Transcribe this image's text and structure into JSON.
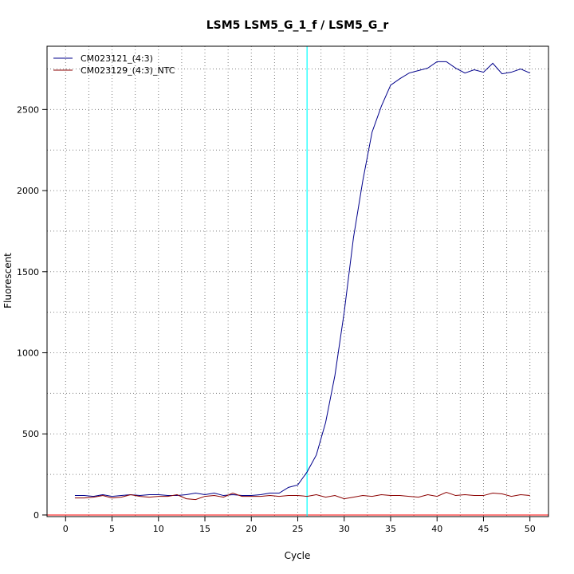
{
  "chart_data": {
    "type": "line",
    "title": "LSM5  LSM5_G_1_f / LSM5_G_r",
    "xlabel": "Cycle",
    "ylabel": "Fluorescent",
    "xlim": [
      -2,
      52
    ],
    "ylim": [
      -10,
      2890
    ],
    "xticks": [
      0,
      5,
      10,
      15,
      20,
      25,
      30,
      35,
      40,
      45,
      50
    ],
    "yticks": [
      0,
      500,
      1000,
      1500,
      2000,
      2500
    ],
    "grid": true,
    "legend_position": "top-left",
    "threshold_cycle": 26,
    "baseline": 0,
    "colors": {
      "series_1": "#00008b",
      "series_2": "#8b0000",
      "threshold": "#00ffff",
      "baseline": "#ff0000",
      "grid": "#808080"
    },
    "series": [
      {
        "name": "CM023121_(4:3)",
        "color": "#00008b",
        "x": [
          1,
          2,
          3,
          4,
          5,
          6,
          7,
          8,
          9,
          10,
          11,
          12,
          13,
          14,
          15,
          16,
          17,
          18,
          19,
          20,
          21,
          22,
          23,
          24,
          25,
          26,
          27,
          28,
          29,
          30,
          31,
          32,
          33,
          34,
          35,
          36,
          37,
          38,
          39,
          40,
          41,
          42,
          43,
          44,
          45,
          46,
          47,
          48,
          49,
          50
        ],
        "values": [
          120,
          120,
          115,
          125,
          115,
          120,
          125,
          120,
          125,
          125,
          120,
          120,
          125,
          135,
          125,
          135,
          120,
          125,
          120,
          120,
          125,
          135,
          135,
          170,
          185,
          265,
          370,
          570,
          860,
          1250,
          1710,
          2060,
          2360,
          2520,
          2650,
          2690,
          2725,
          2740,
          2755,
          2795,
          2795,
          2755,
          2725,
          2745,
          2730,
          2785,
          2720,
          2730,
          2750,
          2725
        ]
      },
      {
        "name": "CM023129_(4:3)_NTC",
        "color": "#8b0000",
        "x": [
          1,
          2,
          3,
          4,
          5,
          6,
          7,
          8,
          9,
          10,
          11,
          12,
          13,
          14,
          15,
          16,
          17,
          18,
          19,
          20,
          21,
          22,
          23,
          24,
          25,
          26,
          27,
          28,
          29,
          30,
          31,
          32,
          33,
          34,
          35,
          36,
          37,
          38,
          39,
          40,
          41,
          42,
          43,
          44,
          45,
          46,
          47,
          48,
          49,
          50
        ],
        "values": [
          105,
          105,
          110,
          120,
          105,
          110,
          125,
          115,
          110,
          115,
          115,
          125,
          100,
          95,
          115,
          120,
          110,
          135,
          115,
          115,
          115,
          120,
          115,
          120,
          120,
          115,
          125,
          110,
          120,
          100,
          110,
          120,
          115,
          125,
          120,
          120,
          115,
          110,
          125,
          115,
          140,
          120,
          125,
          120,
          120,
          135,
          130,
          115,
          125,
          120
        ]
      }
    ]
  }
}
